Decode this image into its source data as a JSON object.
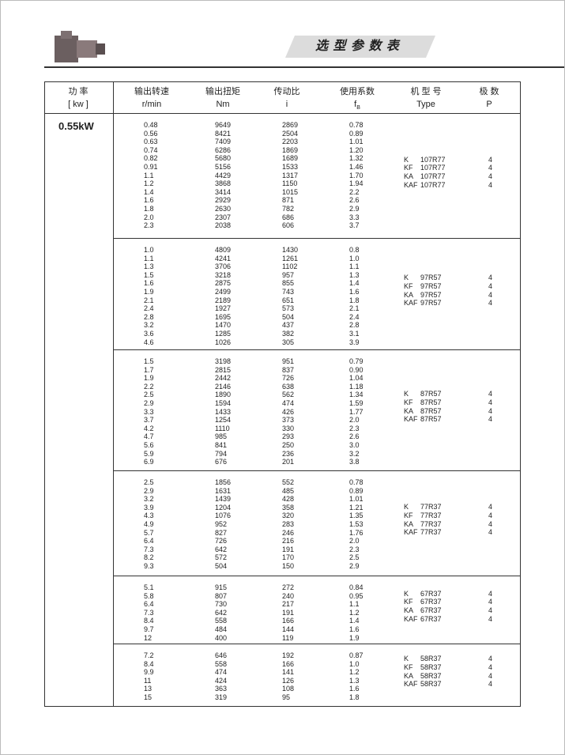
{
  "header": {
    "title": "选 型 参 数 表"
  },
  "table": {
    "columns": [
      {
        "title": "功 率",
        "unit": "[ kw ]"
      },
      {
        "title": "输出转速",
        "unit": "r/min"
      },
      {
        "title": "输出扭矩",
        "unit": "Nm"
      },
      {
        "title": "传动比",
        "unit": "i"
      },
      {
        "title": "使用系数",
        "unit": "f",
        "unit_sub": "B"
      },
      {
        "title": "机 型 号",
        "unit": "Type"
      },
      {
        "title": "极  数",
        "unit": "P"
      }
    ],
    "power": "0.55kW",
    "groups": [
      {
        "rows": [
          [
            "0.48",
            "9649",
            "2869",
            "0.78"
          ],
          [
            "0.56",
            "8421",
            "2504",
            "0.89"
          ],
          [
            "0.63",
            "7409",
            "2203",
            "1.01"
          ],
          [
            "0.74",
            "6286",
            "1869",
            "1.20"
          ],
          [
            "0.82",
            "5680",
            "1689",
            "1.32"
          ],
          [
            "0.91",
            "5156",
            "1533",
            "1.46"
          ],
          [
            "1.1",
            "4429",
            "1317",
            "1.70"
          ],
          [
            "1.2",
            "3868",
            "1150",
            "1.94"
          ],
          [
            "1.4",
            "3414",
            "1015",
            "2.2"
          ],
          [
            "1.6",
            "2929",
            "871",
            "2.6"
          ],
          [
            "1.8",
            "2630",
            "782",
            "2.9"
          ],
          [
            "2.0",
            "2307",
            "686",
            "3.3"
          ],
          [
            "2.3",
            "2038",
            "606",
            "3.7"
          ]
        ],
        "models": [
          [
            "K",
            "107R77",
            "4"
          ],
          [
            "KF",
            "107R77",
            "4"
          ],
          [
            "KA",
            "107R77",
            "4"
          ],
          [
            "KAF",
            "107R77",
            "4"
          ]
        ]
      },
      {
        "rows": [
          [
            "1.0",
            "4809",
            "1430",
            "0.8"
          ],
          [
            "1.1",
            "4241",
            "1261",
            "1.0"
          ],
          [
            "1.3",
            "3706",
            "1102",
            "1.1"
          ],
          [
            "1.5",
            "3218",
            "957",
            "1.3"
          ],
          [
            "1.6",
            "2875",
            "855",
            "1.4"
          ],
          [
            "1.9",
            "2499",
            "743",
            "1.6"
          ],
          [
            "2.1",
            "2189",
            "651",
            "1.8"
          ],
          [
            "2.4",
            "1927",
            "573",
            "2.1"
          ],
          [
            "2.8",
            "1695",
            "504",
            "2.4"
          ],
          [
            "3.2",
            "1470",
            "437",
            "2.8"
          ],
          [
            "3.6",
            "1285",
            "382",
            "3.1"
          ],
          [
            "4.6",
            "1026",
            "305",
            "3.9"
          ]
        ],
        "models": [
          [
            "K",
            "97R57",
            "4"
          ],
          [
            "KF",
            "97R57",
            "4"
          ],
          [
            "KA",
            "97R57",
            "4"
          ],
          [
            "KAF",
            "97R57",
            "4"
          ]
        ]
      },
      {
        "rows": [
          [
            "1.5",
            "3198",
            "951",
            "0.79"
          ],
          [
            "1.7",
            "2815",
            "837",
            "0.90"
          ],
          [
            "1.9",
            "2442",
            "726",
            "1.04"
          ],
          [
            "2.2",
            "2146",
            "638",
            "1.18"
          ],
          [
            "2.5",
            "1890",
            "562",
            "1.34"
          ],
          [
            "2.9",
            "1594",
            "474",
            "1.59"
          ],
          [
            "3.3",
            "1433",
            "426",
            "1.77"
          ],
          [
            "3.7",
            "1254",
            "373",
            "2.0"
          ],
          [
            "4.2",
            "1110",
            "330",
            "2.3"
          ],
          [
            "4.7",
            "985",
            "293",
            "2.6"
          ],
          [
            "5.6",
            "841",
            "250",
            "3.0"
          ],
          [
            "5.9",
            "794",
            "236",
            "3.2"
          ],
          [
            "6.9",
            "676",
            "201",
            "3.8"
          ]
        ],
        "models": [
          [
            "K",
            "87R57",
            "4"
          ],
          [
            "KF",
            "87R57",
            "4"
          ],
          [
            "KA",
            "87R57",
            "4"
          ],
          [
            "KAF",
            "87R57",
            "4"
          ]
        ]
      },
      {
        "rows": [
          [
            "2.5",
            "1856",
            "552",
            "0.78"
          ],
          [
            "2.9",
            "1631",
            "485",
            "0.89"
          ],
          [
            "3.2",
            "1439",
            "428",
            "1.01"
          ],
          [
            "3.9",
            "1204",
            "358",
            "1.21"
          ],
          [
            "4.3",
            "1076",
            "320",
            "1.35"
          ],
          [
            "4.9",
            "952",
            "283",
            "1.53"
          ],
          [
            "5.7",
            "827",
            "246",
            "1.76"
          ],
          [
            "6.4",
            "726",
            "216",
            "2.0"
          ],
          [
            "7.3",
            "642",
            "191",
            "2.3"
          ],
          [
            "8.2",
            "572",
            "170",
            "2.5"
          ],
          [
            "9.3",
            "504",
            "150",
            "2.9"
          ]
        ],
        "models": [
          [
            "K",
            "77R37",
            "4"
          ],
          [
            "KF",
            "77R37",
            "4"
          ],
          [
            "KA",
            "77R37",
            "4"
          ],
          [
            "KAF",
            "77R37",
            "4"
          ]
        ]
      },
      {
        "rows": [
          [
            "5.1",
            "915",
            "272",
            "0.84"
          ],
          [
            "5.8",
            "807",
            "240",
            "0.95"
          ],
          [
            "6.4",
            "730",
            "217",
            "1.1"
          ],
          [
            "7.3",
            "642",
            "191",
            "1.2"
          ],
          [
            "8.4",
            "558",
            "166",
            "1.4"
          ],
          [
            "9.7",
            "484",
            "144",
            "1.6"
          ],
          [
            "12",
            "400",
            "119",
            "1.9"
          ]
        ],
        "models": [
          [
            "K",
            "67R37",
            "4"
          ],
          [
            "KF",
            "67R37",
            "4"
          ],
          [
            "KA",
            "67R37",
            "4"
          ],
          [
            "KAF",
            "67R37",
            "4"
          ]
        ]
      },
      {
        "rows": [
          [
            "7.2",
            "646",
            "192",
            "0.87"
          ],
          [
            "8.4",
            "558",
            "166",
            "1.0"
          ],
          [
            "9.9",
            "474",
            "141",
            "1.2"
          ],
          [
            "11",
            "424",
            "126",
            "1.3"
          ],
          [
            "13",
            "363",
            "108",
            "1.6"
          ],
          [
            "15",
            "319",
            "95",
            "1.8"
          ]
        ],
        "models": [
          [
            "K",
            "58R37",
            "4"
          ],
          [
            "KF",
            "58R37",
            "4"
          ],
          [
            "KA",
            "58R37",
            "4"
          ],
          [
            "KAF",
            "58R37",
            "4"
          ]
        ]
      }
    ]
  }
}
